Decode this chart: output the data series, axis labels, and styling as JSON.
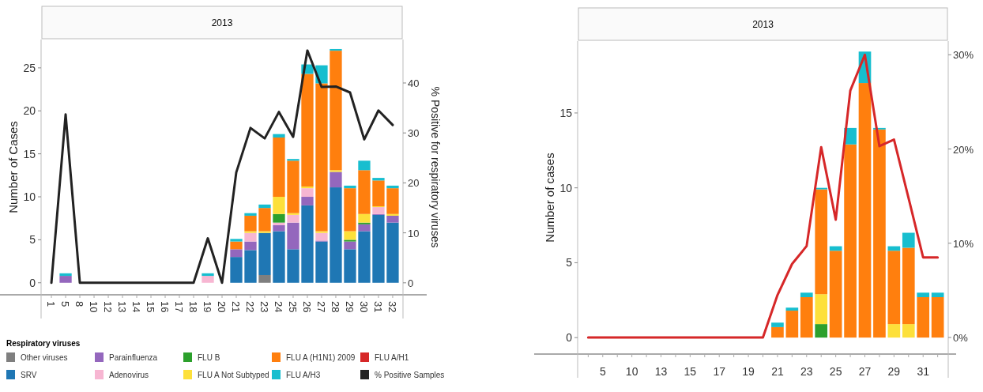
{
  "chart_data": [
    {
      "type": "bar",
      "stacked": true,
      "title": "2013",
      "ylabel": "Number of Cases",
      "y2label": "% Positive for respiratory viruses",
      "legend_title": "Respiratory viruses",
      "legend": "bottom",
      "categories": [
        "1",
        "5",
        "8",
        "10",
        "12",
        "13",
        "14",
        "15",
        "16",
        "17",
        "18",
        "19",
        "20",
        "21",
        "22",
        "23",
        "24",
        "25",
        "26",
        "27",
        "28",
        "29",
        "30",
        "31",
        "32"
      ],
      "ylim": [
        -1.4,
        28.3
      ],
      "yticks": [
        0,
        5,
        10,
        15,
        20,
        25
      ],
      "y2lim": [
        -2.4,
        48.7
      ],
      "y2ticks": [
        0,
        10,
        20,
        30,
        40
      ],
      "series": [
        {
          "name": "Other viruses",
          "color": "#7f7f7f",
          "values": [
            0,
            0,
            0,
            0,
            0,
            0,
            0,
            0,
            0,
            0,
            0,
            0,
            0,
            0,
            0,
            0.9,
            0,
            0,
            0,
            0,
            0,
            0,
            0,
            0,
            0
          ]
        },
        {
          "name": "SRV",
          "color": "#1f77b4",
          "values": [
            0,
            0,
            0,
            0,
            0,
            0,
            0,
            0,
            0,
            0,
            0,
            0,
            0,
            3,
            3.8,
            4.9,
            6.0,
            3.9,
            9.0,
            4.8,
            11.1,
            3.9,
            6.0,
            7.9,
            7.0
          ]
        },
        {
          "name": "Parainfluenza",
          "color": "#9467bd",
          "values": [
            0,
            0.8,
            0,
            0,
            0,
            0,
            0,
            0,
            0,
            0,
            0,
            0,
            0,
            0.9,
            1.0,
            0,
            0.7,
            3.1,
            1.0,
            0.1,
            1.8,
            0.9,
            0.8,
            0.1,
            0.8
          ]
        },
        {
          "name": "Adenovirus",
          "color": "#f7b6d2",
          "values": [
            0,
            0,
            0,
            0,
            0,
            0,
            0,
            0,
            0,
            0,
            0,
            0.8,
            0,
            0,
            1.0,
            0,
            0.3,
            0.9,
            1.0,
            0.9,
            0,
            0,
            0,
            0.8,
            0
          ]
        },
        {
          "name": "FLU B",
          "color": "#2ca02c",
          "values": [
            0,
            0,
            0,
            0,
            0,
            0,
            0,
            0,
            0,
            0,
            0,
            0,
            0,
            0,
            0,
            0,
            1.0,
            0,
            0,
            0,
            0,
            0.2,
            0.2,
            0,
            0
          ]
        },
        {
          "name": "FLU A Not Subtyped",
          "color": "#fde03a",
          "values": [
            0,
            0,
            0,
            0,
            0,
            0,
            0,
            0,
            0,
            0,
            0,
            0,
            0,
            0,
            0.2,
            0.2,
            2.0,
            0.2,
            0.2,
            0.2,
            0.2,
            1.0,
            1.0,
            0.1,
            0.2
          ]
        },
        {
          "name": "FLU A (H1N1) 2009",
          "color": "#ff7f0e",
          "values": [
            0,
            0,
            0,
            0,
            0,
            0,
            0,
            0,
            0,
            0,
            0,
            0,
            0,
            0.9,
            1.8,
            2.7,
            6.9,
            6.1,
            13.1,
            17.2,
            13.9,
            5.0,
            5.1,
            3.0,
            3.0
          ]
        },
        {
          "name": "FLU A/H3",
          "color": "#17becf",
          "values": [
            0,
            0.3,
            0,
            0,
            0,
            0,
            0,
            0,
            0,
            0,
            0,
            0.3,
            0,
            0.3,
            0.3,
            0.4,
            0.4,
            0.2,
            1.1,
            2.1,
            0.2,
            0.3,
            1.1,
            0.3,
            0.3
          ]
        },
        {
          "name": "FLU A/H1",
          "color": "#d62728",
          "values": [
            0,
            0,
            0,
            0,
            0,
            0,
            0,
            0,
            0,
            0,
            0,
            0,
            0,
            0,
            0,
            0,
            0,
            0,
            0,
            0,
            0,
            0,
            0,
            0,
            0
          ]
        },
        {
          "name": "% Positive Samples",
          "type": "line",
          "axis": "y2",
          "color": "#222222",
          "values": [
            0,
            33.7,
            0,
            0,
            0,
            0,
            0,
            0,
            0,
            0,
            0,
            8.9,
            0,
            22.1,
            31.0,
            28.9,
            34.2,
            29.2,
            46.5,
            39.2,
            39.3,
            38.1,
            28.7,
            34.5,
            31.6
          ]
        }
      ]
    },
    {
      "type": "bar",
      "stacked": true,
      "title": "2013",
      "ylabel": "Number of cases",
      "categories": [
        null,
        "5",
        null,
        "10",
        null,
        "13",
        null,
        "15",
        null,
        "17",
        null,
        "19",
        null,
        "21",
        null,
        "23",
        null,
        "25",
        null,
        "27",
        null,
        "29",
        null,
        "31",
        null
      ],
      "ylim": [
        -1.1,
        19.8
      ],
      "yticks": [
        0,
        5,
        10,
        15
      ],
      "y2lim": [
        -1.76,
        31.45
      ],
      "y2ticks": [
        {
          "value": 0,
          "label": "0%"
        },
        {
          "value": 10,
          "label": "10%"
        },
        {
          "value": 20,
          "label": "20%"
        },
        {
          "value": 30,
          "label": "30%"
        }
      ],
      "series": [
        {
          "color": "#2ca02c",
          "values": [
            0,
            0,
            0,
            0,
            0,
            0,
            0,
            0,
            0,
            0,
            0,
            0,
            0,
            0,
            0,
            0,
            0.9,
            0,
            0,
            0,
            0,
            0,
            0,
            0,
            0
          ]
        },
        {
          "color": "#fde03a",
          "values": [
            0,
            0,
            0,
            0,
            0,
            0,
            0,
            0,
            0,
            0,
            0,
            0,
            0,
            0,
            0,
            0,
            2.0,
            0,
            0,
            0,
            0,
            0.9,
            0.9,
            0,
            0
          ]
        },
        {
          "color": "#ff7f0e",
          "values": [
            0,
            0,
            0,
            0,
            0,
            0,
            0,
            0,
            0,
            0,
            0,
            0,
            0,
            0.7,
            1.8,
            2.7,
            7.0,
            5.8,
            12.9,
            17.0,
            13.9,
            4.9,
            5.1,
            2.7,
            2.7
          ]
        },
        {
          "color": "#17becf",
          "values": [
            0,
            0,
            0,
            0,
            0,
            0,
            0,
            0,
            0,
            0,
            0,
            0,
            0,
            0.3,
            0.2,
            0.3,
            0.1,
            0.3,
            1.1,
            2.1,
            0.1,
            0.3,
            1.0,
            0.3,
            0.3
          ]
        },
        {
          "type": "line",
          "axis": "y2",
          "color": "#d62728",
          "values": [
            0,
            0,
            0,
            0,
            0,
            0,
            0,
            0,
            0,
            0,
            0,
            0,
            0,
            4.5,
            7.8,
            9.7,
            20.2,
            12.5,
            26.2,
            30.0,
            20.3,
            21.0,
            14.8,
            8.5,
            8.5
          ]
        }
      ]
    }
  ]
}
